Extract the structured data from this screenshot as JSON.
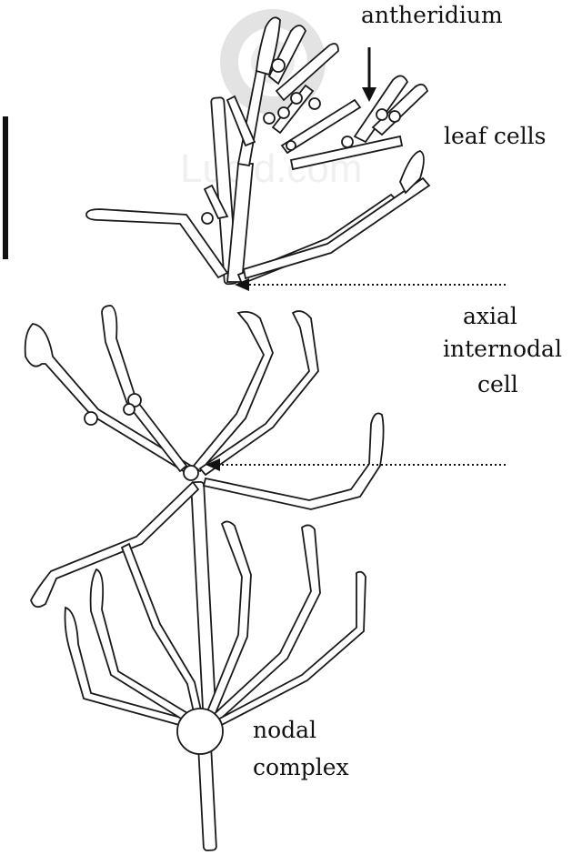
{
  "labels": {
    "antheridium": "antheridium",
    "leaf_cells": "leaf cells",
    "axial_line1": "axial",
    "axial_line2": "internodal",
    "axial_line3": "cell",
    "nodal_line1": "nodal",
    "nodal_line2": "complex"
  },
  "watermark": {
    "text": "Lucid.com"
  },
  "colors": {
    "ink": "#1a1a1a",
    "background": "#ffffff",
    "watermark": "#bdbdbd"
  }
}
